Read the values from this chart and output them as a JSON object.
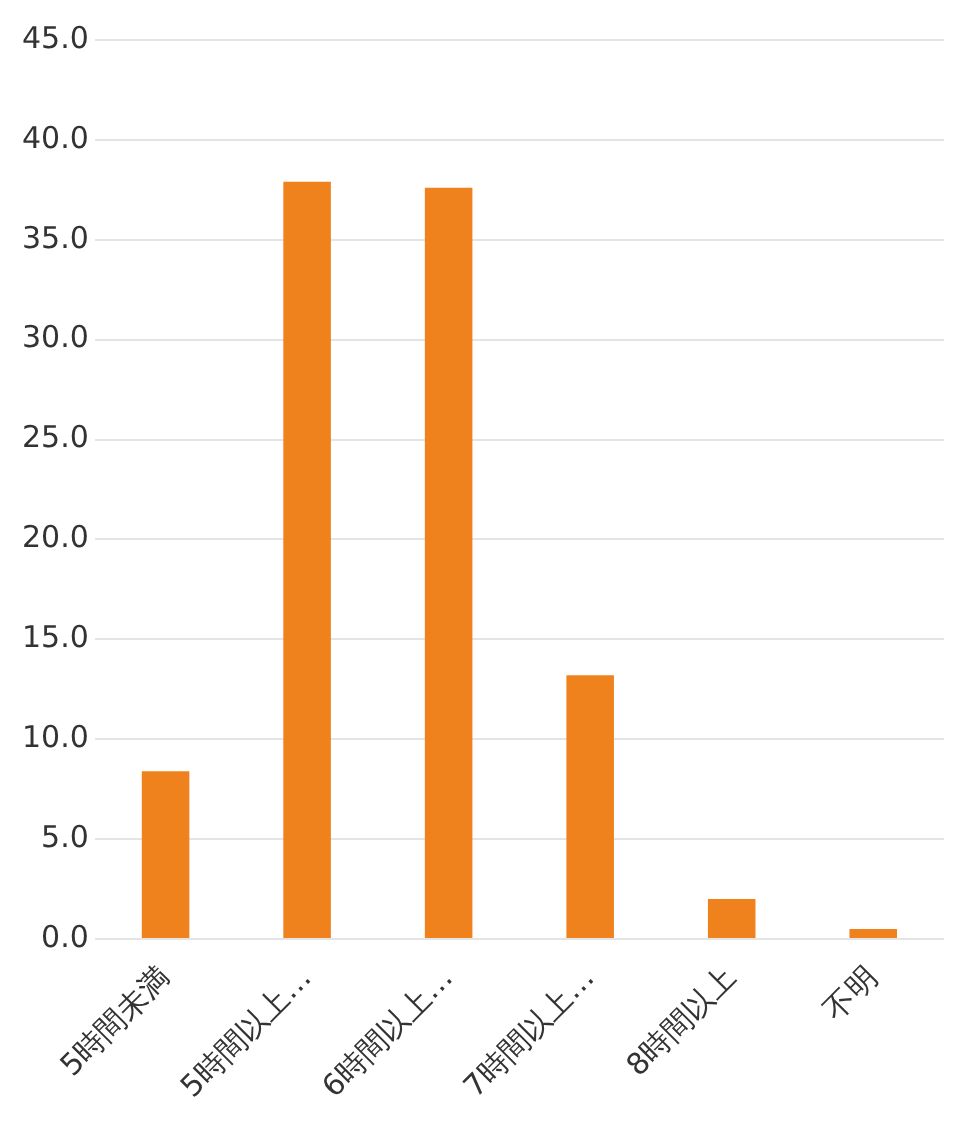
{
  "chart_data": {
    "type": "bar",
    "categories": [
      "5時間未満",
      "5時間以上…",
      "6時間以上…",
      "7時間以上…",
      "8時間以上",
      "不明"
    ],
    "values": [
      8.4,
      37.9,
      37.6,
      13.2,
      2.0,
      0.5
    ],
    "color": "#f0821e",
    "ylim": [
      0,
      45
    ],
    "yticks": [
      {
        "value": 0,
        "label": "0.0"
      },
      {
        "value": 5,
        "label": "5.0"
      },
      {
        "value": 10,
        "label": "10.0"
      },
      {
        "value": 15,
        "label": "15.0"
      },
      {
        "value": 20,
        "label": "20.0"
      },
      {
        "value": 25,
        "label": "25.0"
      },
      {
        "value": 30,
        "label": "30.0"
      },
      {
        "value": 35,
        "label": "35.0"
      },
      {
        "value": 40,
        "label": "40.0"
      },
      {
        "value": 45,
        "label": "45.0"
      }
    ],
    "grid": "y",
    "legend": false
  }
}
